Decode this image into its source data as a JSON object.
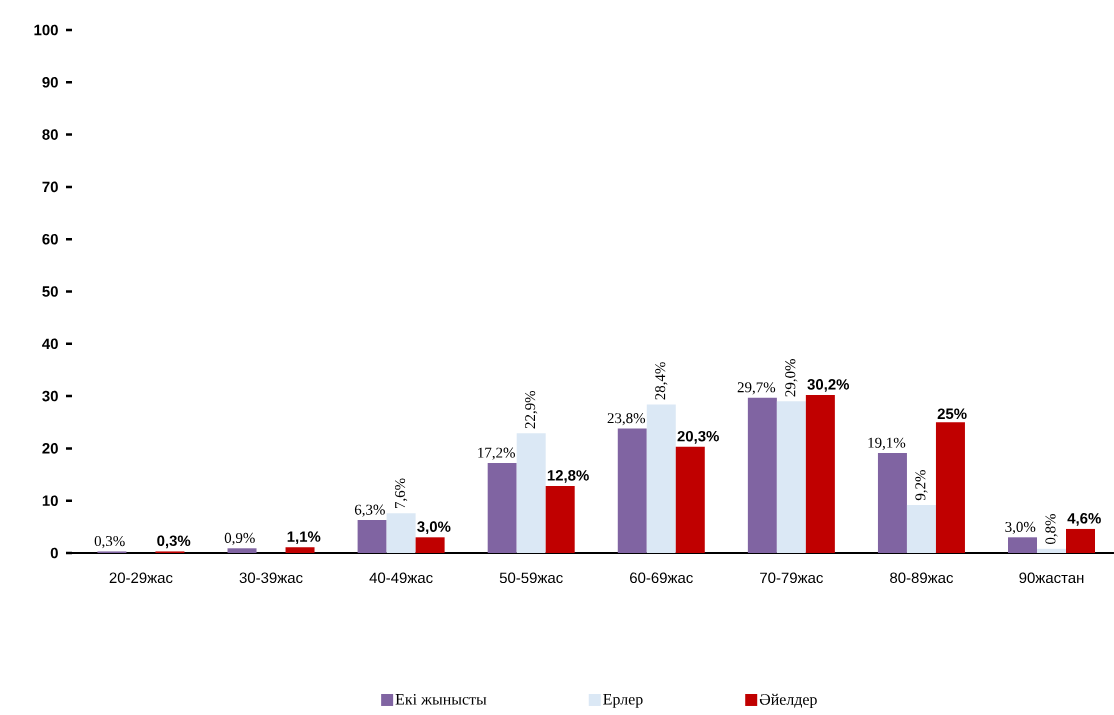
{
  "chart_data": {
    "type": "bar",
    "categories": [
      "20-29жас",
      "30-39жас",
      "40-49жас",
      "50-59жас",
      "60-69жас",
      "70-79жас",
      "80-89жас",
      "90жастан"
    ],
    "series": [
      {
        "name": "Екі жынысты",
        "color": "#8064a2",
        "values": [
          0.3,
          0.9,
          6.3,
          17.2,
          23.8,
          29.7,
          19.1,
          3.0
        ],
        "value_labels": [
          "0,3%",
          "0,9%",
          "6,3%",
          "17,2%",
          "23,8%",
          "29,7%",
          "19,1%",
          "3,0%"
        ]
      },
      {
        "name": "Ерлер",
        "color": "#dbe8f5",
        "values": [
          null,
          null,
          7.6,
          22.9,
          28.4,
          29.0,
          9.2,
          0.8
        ],
        "value_labels": [
          null,
          null,
          "7,6%",
          "22,9%",
          "28,4%",
          "29,0%",
          "9,2%",
          "0,8%"
        ]
      },
      {
        "name": "Әйелдер",
        "color": "#c00000",
        "values": [
          0.3,
          1.1,
          3.0,
          12.8,
          20.3,
          30.2,
          25,
          4.6
        ],
        "value_labels": [
          "0,3%",
          "1,1%",
          "3,0%",
          "12,8%",
          "20,3%",
          "30,2%",
          "25%",
          "4,6%"
        ]
      }
    ],
    "ylim": [
      0,
      100
    ],
    "yticks": [
      0,
      10,
      20,
      30,
      40,
      50,
      60,
      70,
      80,
      90,
      100
    ],
    "legend": "bottom"
  }
}
